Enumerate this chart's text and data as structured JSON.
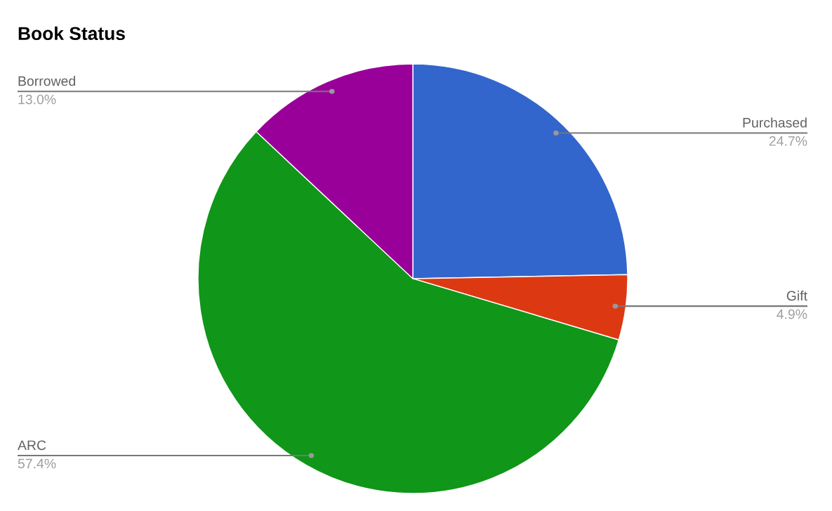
{
  "chart_data": {
    "type": "pie",
    "title": "Book Status",
    "categories": [
      "Purchased",
      "Gift",
      "ARC",
      "Borrowed"
    ],
    "values": [
      24.7,
      4.9,
      57.4,
      13.0
    ],
    "value_labels": [
      "24.7%",
      "4.9%",
      "57.4%",
      "13.0%"
    ],
    "colors": [
      "#3366cc",
      "#dc3912",
      "#109618",
      "#990099"
    ]
  }
}
